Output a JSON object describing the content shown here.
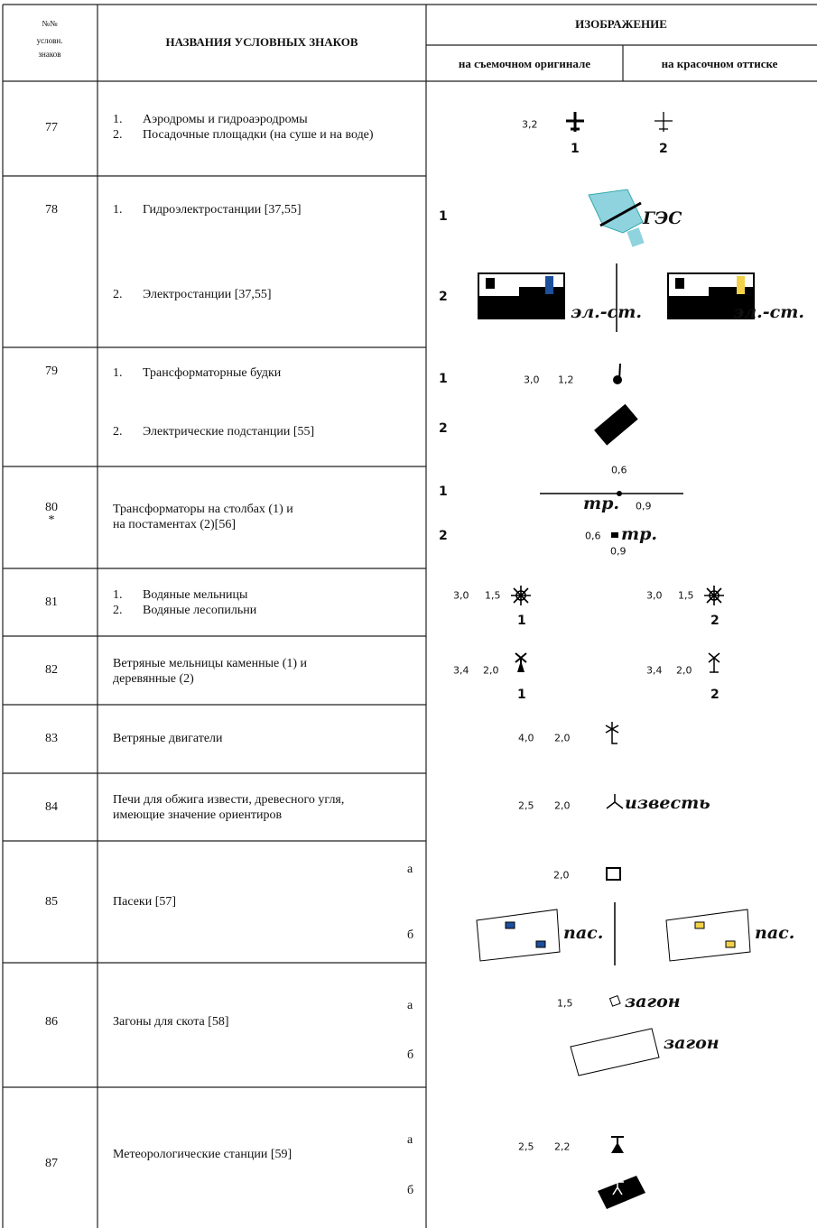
{
  "header": {
    "number": [
      "№№",
      "условн.",
      "знаков"
    ],
    "names": "НАЗВАНИЯ УСЛОВНЫХ ЗНАКОВ",
    "image": "ИЗОБРАЖЕНИЕ",
    "image_columns": [
      "на съемочном оригинале",
      "на красочном оттиске"
    ]
  },
  "rows": [
    {
      "number": "77",
      "items": [
        {
          "num": "1.",
          "text": "Аэродромы и гидроаэродромы"
        },
        {
          "num": "2.",
          "text": "Посадочные площадки (на суше и на воде)"
        }
      ],
      "image_texts": [
        "3,2",
        "1",
        "2"
      ]
    },
    {
      "number": "78",
      "items": [
        {
          "num": "1.",
          "text": "Гидроэлектростанции [37,55]"
        },
        {
          "num": "2.",
          "text": "Электростанции [37,55]"
        }
      ],
      "image_texts": [
        "1",
        "ГЭС",
        "2",
        "эл.-ст.",
        "эл.-ст."
      ]
    },
    {
      "number": "79",
      "items": [
        {
          "num": "1.",
          "text": "Трансформаторные будки"
        },
        {
          "num": "2.",
          "text": "Электрические подстанции [55]"
        }
      ],
      "image_texts": [
        "1",
        "3,0",
        "1,2",
        "2"
      ]
    },
    {
      "number": "80",
      "note": "*",
      "lines": [
        "Трансформаторы на столбах (1) и",
        "на постаментах (2)[56]"
      ],
      "image_texts": [
        "0,6",
        "1",
        "тр.",
        "0,9",
        "2",
        "0,6",
        "тр.",
        "0,9"
      ]
    },
    {
      "number": "81",
      "items": [
        {
          "num": "1.",
          "text": "Водяные мельницы"
        },
        {
          "num": "2.",
          "text": "Водяные лесопильни"
        }
      ],
      "image_texts": [
        "3,0",
        "1,5",
        "1",
        "3,0",
        "1,5",
        "2"
      ]
    },
    {
      "number": "82",
      "lines": [
        "Ветряные мельницы каменные (1) и",
        "деревянные (2)"
      ],
      "image_texts": [
        "3,4",
        "2,0",
        "1",
        "3,4",
        "2,0",
        "2"
      ]
    },
    {
      "number": "83",
      "lines": [
        "Ветряные двигатели"
      ],
      "image_texts": [
        "4,0",
        "2,0"
      ]
    },
    {
      "number": "84",
      "lines": [
        "Печи для обжига извести, древесного угля,",
        "имеющие значение ориентиров"
      ],
      "image_texts": [
        "2,5",
        "2,0",
        "известь"
      ]
    },
    {
      "number": "85",
      "lines": [
        "Пасеки [57]"
      ],
      "letters": [
        "а",
        "б"
      ],
      "image_texts": [
        "2,0",
        "пас.",
        "пас."
      ]
    },
    {
      "number": "86",
      "lines": [
        "Загоны для скота [58]"
      ],
      "letters": [
        "а",
        "б"
      ],
      "image_texts": [
        "1,5",
        "загон",
        "загон"
      ]
    },
    {
      "number": "87",
      "lines": [
        "Метеорологические станции [59]"
      ],
      "letters": [
        "а",
        "б"
      ],
      "image_texts": [
        "2,5",
        "2,2"
      ]
    }
  ]
}
